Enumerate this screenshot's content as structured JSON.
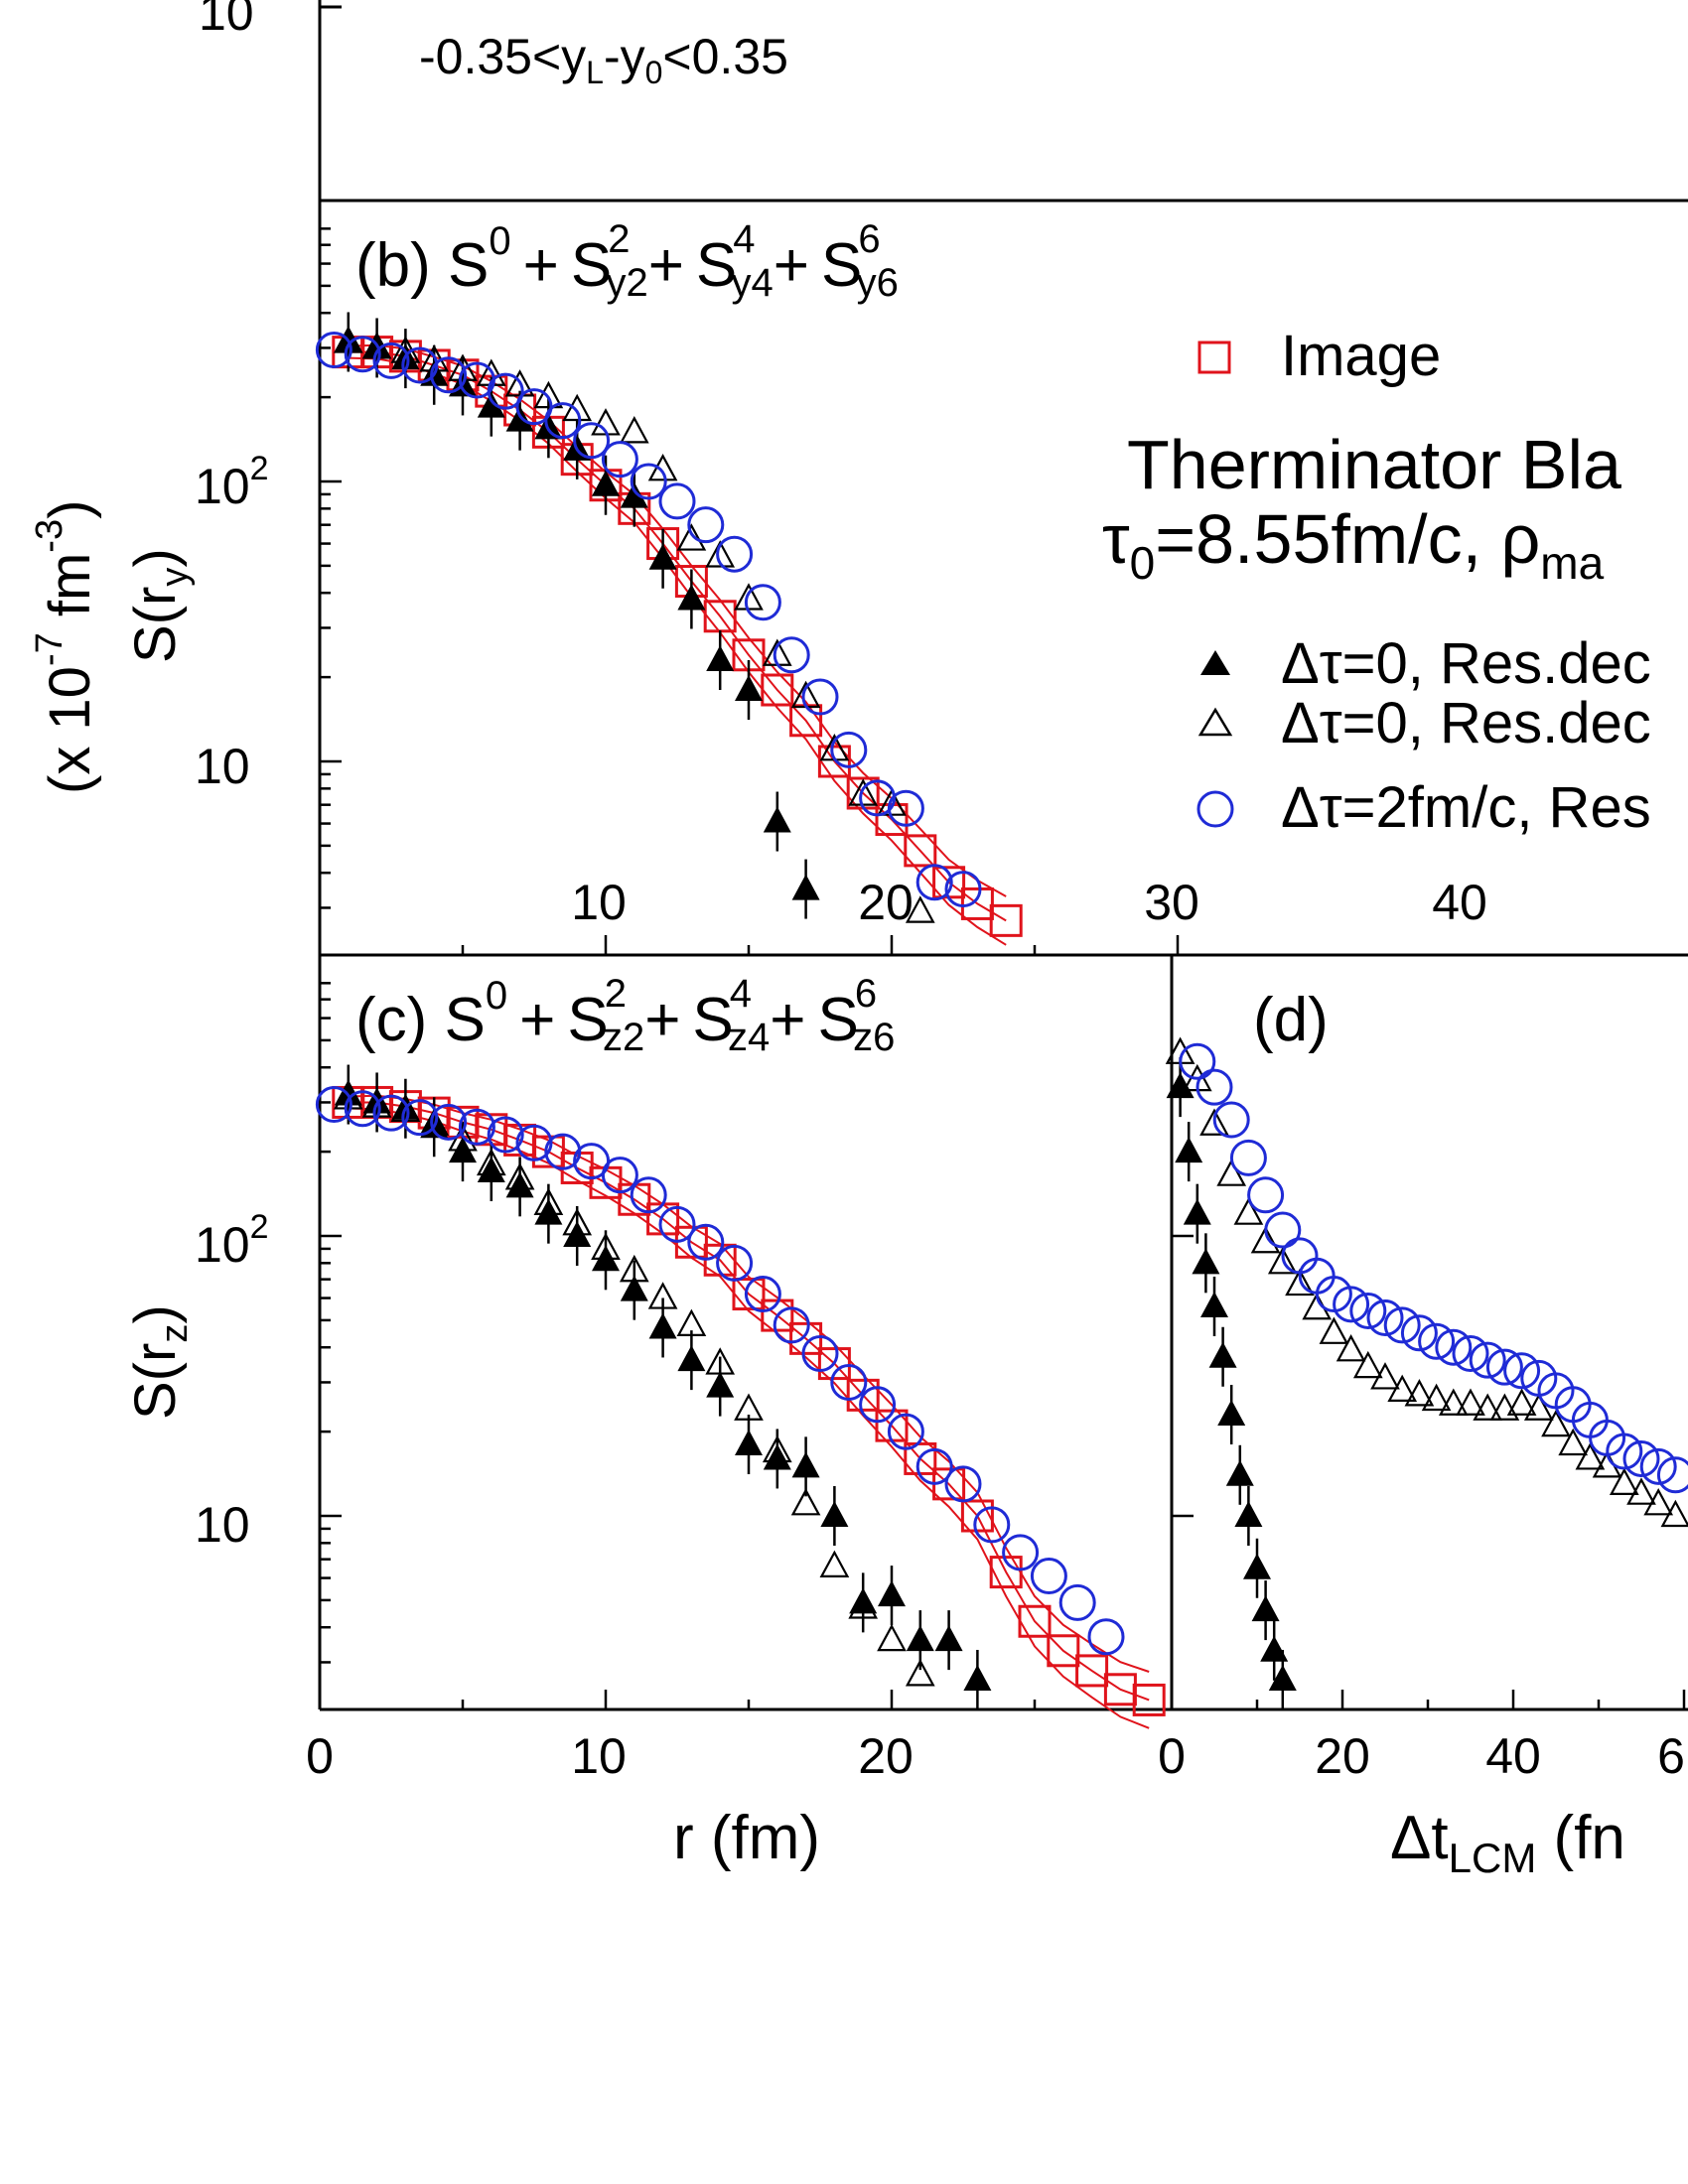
{
  "colors": {
    "image": "#e0131b",
    "res_fill": "#000000",
    "res_open": "#000000",
    "tau2": "#1f2bd6",
    "axis": "#000000"
  },
  "panel_a": {
    "cut_label": "-0.35<y_L-y_0<0.35",
    "tick_10": "10"
  },
  "panel_b": {
    "label_base": "(b) S",
    "sup0": "0",
    "plus": "+",
    "S": "S",
    "t1": {
      "sub": "y2",
      "sup": "2"
    },
    "t2": {
      "sub": "y4",
      "sup": "4"
    },
    "t3": {
      "sub": "y6",
      "sup": "6"
    }
  },
  "panel_c": {
    "label_base": "(c) S",
    "sup0": "0",
    "plus": "+",
    "S": "S",
    "t1": {
      "sub": "z2",
      "sup": "2"
    },
    "t2": {
      "sub": "z4",
      "sup": "4"
    },
    "t3": {
      "sub": "z6",
      "sup": "6"
    }
  },
  "panel_d": {
    "label": "(d)"
  },
  "legend": {
    "image": "Image",
    "model_line1": "Therminator Bla",
    "model_line2_a": "τ",
    "model_line2_sub": "0",
    "model_line2_b": "=8.55fm/c, ρ",
    "model_line2_sub2": "ma",
    "filled": "Δτ=0, Res.dec",
    "open": "Δτ=0, Res.dec",
    "circle": "Δτ=2fm/c, Res"
  },
  "axes": {
    "ylabel_units": "(x 10",
    "ylabel_units_exp": "-7",
    "ylabel_units_rest": " fm",
    "ylabel_units_exp2": "-3",
    "ylabel_units_close": ")",
    "ylabel_b": "S(r",
    "ylabel_b_sub": "y",
    "ylabel_c": "S(r",
    "ylabel_c_sub": "z",
    "close_paren": ")",
    "xlabel_c": "r (fm)",
    "xlabel_d": "Δt",
    "xlabel_d_sub": "LCM",
    "xlabel_d_rest": " (fn",
    "ytick_100": "10",
    "ytick_100_exp": "2",
    "ytick_10": "10",
    "xticks_b": [
      "10",
      "20",
      "30",
      "40"
    ],
    "xticks_c": [
      "0",
      "10",
      "20",
      "0"
    ],
    "xticks_d": [
      "20",
      "40",
      "6"
    ]
  },
  "chart_data": [
    {
      "type": "scatter",
      "panel": "b",
      "xlim": [
        0,
        48
      ],
      "ylim_log": [
        2.5,
        900
      ],
      "series": [
        {
          "name": "Image",
          "marker": "open-square",
          "band": true,
          "x": [
            1,
            2,
            3,
            4,
            5,
            6,
            7,
            8,
            9,
            10,
            11,
            12,
            13,
            14,
            15,
            16,
            17,
            18,
            19,
            20,
            21,
            22,
            23,
            24
          ],
          "y": [
            290,
            290,
            280,
            260,
            240,
            210,
            180,
            150,
            120,
            97,
            80,
            60,
            44,
            33,
            24,
            18,
            14,
            10,
            7.7,
            6.2,
            4.8,
            3.7,
            3.1,
            2.7
          ]
        },
        {
          "name": "Δτ=0, Res.dec",
          "marker": "filled-triangle",
          "x": [
            1,
            2,
            3,
            4,
            5,
            6,
            7,
            8,
            9,
            10,
            11,
            12,
            13,
            14,
            15,
            16,
            17
          ],
          "y": [
            315,
            300,
            275,
            240,
            220,
            185,
            165,
            155,
            130,
            97,
            88,
            53,
            38,
            23,
            18,
            6.1,
            3.5
          ]
        },
        {
          "name": "Δτ=0, Res.dec",
          "marker": "open-triangle",
          "x": [
            1,
            2,
            3,
            4,
            5,
            6,
            7,
            8,
            9,
            10,
            11,
            12,
            13,
            14,
            15,
            16,
            17,
            18,
            19,
            20,
            21
          ],
          "y": [
            315,
            300,
            290,
            270,
            250,
            240,
            220,
            200,
            180,
            160,
            150,
            110,
            62,
            54,
            38,
            24,
            17,
            11,
            7.6,
            7.0,
            2.9
          ]
        },
        {
          "name": "Δτ=2fm/c, Res",
          "marker": "open-circle",
          "x": [
            0.5,
            1.5,
            2.5,
            3.5,
            4.5,
            5.5,
            6.5,
            7.5,
            8.5,
            9.5,
            10.5,
            11.5,
            12.5,
            13.5,
            14.5,
            15.5,
            16.5,
            17.5,
            18.5,
            19.5,
            20.5,
            21.5,
            22.5
          ],
          "y": [
            295,
            285,
            270,
            260,
            240,
            230,
            210,
            185,
            165,
            140,
            120,
            100,
            85,
            70,
            55,
            37,
            24,
            17,
            11,
            7.4,
            6.8,
            3.7,
            3.5
          ]
        }
      ]
    },
    {
      "type": "scatter",
      "panel": "c",
      "xlim": [
        0,
        30
      ],
      "ylim_log": [
        2.5,
        900
      ],
      "series": [
        {
          "name": "Image",
          "marker": "open-square",
          "band": true,
          "x": [
            1,
            2,
            3,
            4,
            5,
            6,
            7,
            8,
            9,
            10,
            11,
            12,
            13,
            14,
            15,
            16,
            17,
            18,
            19,
            20,
            21,
            22,
            23,
            24,
            25,
            26,
            27,
            28,
            29
          ],
          "y": [
            300,
            300,
            290,
            275,
            255,
            240,
            220,
            200,
            175,
            155,
            135,
            115,
            95,
            82,
            62,
            52,
            43,
            35,
            27,
            21,
            16,
            13,
            10,
            6.3,
            4.2,
            3.3,
            2.8,
            2.4,
            2.2
          ]
        },
        {
          "name": "Δτ=0, Res.dec",
          "marker": "filled-triangle",
          "x": [
            1,
            2,
            3,
            4,
            5,
            6,
            7,
            8,
            9,
            10,
            11,
            12,
            13,
            14,
            15,
            16,
            17,
            18,
            19,
            20,
            21,
            22,
            23
          ],
          "y": [
            320,
            300,
            285,
            245,
            200,
            170,
            150,
            120,
            100,
            82,
            64,
            47,
            36,
            29,
            18,
            16,
            15,
            10,
            4.9,
            5.2,
            3.6,
            3.6,
            2.6
          ]
        },
        {
          "name": "Δτ=0, Res.dec",
          "marker": "open-triangle",
          "x": [
            1,
            2,
            3,
            4,
            5,
            6,
            7,
            8,
            9,
            10,
            11,
            12,
            13,
            14,
            15,
            16,
            17,
            18,
            19,
            20,
            21
          ],
          "y": [
            310,
            290,
            280,
            250,
            220,
            180,
            160,
            130,
            110,
            90,
            75,
            60,
            48,
            35,
            24,
            17,
            11,
            6.6,
            4.7,
            3.6,
            2.7
          ]
        },
        {
          "name": "Δτ=2fm/c, Res",
          "marker": "open-circle",
          "x": [
            0.5,
            1.5,
            2.5,
            3.5,
            4.5,
            5.5,
            6.5,
            7.5,
            8.5,
            9.5,
            10.5,
            11.5,
            12.5,
            13.5,
            14.5,
            15.5,
            16.5,
            17.5,
            18.5,
            19.5,
            20.5,
            21.5,
            22.5,
            23.5,
            24.5,
            25.5,
            26.5,
            27.5
          ],
          "y": [
            295,
            285,
            275,
            265,
            255,
            245,
            230,
            215,
            200,
            185,
            165,
            140,
            110,
            95,
            80,
            62,
            48,
            38,
            30,
            25,
            20,
            15,
            13,
            9.3,
            7.4,
            6.1,
            4.9,
            3.7
          ]
        }
      ]
    },
    {
      "type": "scatter",
      "panel": "d",
      "xlim": [
        0,
        60
      ],
      "ylim_log": [
        2.5,
        900
      ],
      "series": [
        {
          "name": "Δτ=0, Res.dec",
          "marker": "filled-triangle",
          "x": [
            1,
            2,
            3,
            4,
            5,
            6,
            7,
            8,
            9,
            10,
            11,
            12,
            13
          ],
          "y": [
            340,
            200,
            120,
            80,
            56,
            37,
            23,
            14,
            10,
            6.5,
            4.6,
            3.3,
            2.6
          ]
        },
        {
          "name": "Δτ=0, Res.dec",
          "marker": "open-triangle",
          "x": [
            1,
            3,
            5,
            7,
            9,
            11,
            13,
            15,
            17,
            19,
            21,
            23,
            25,
            27,
            29,
            31,
            33,
            35,
            37,
            39,
            41,
            43,
            45,
            47,
            49,
            51,
            53,
            55,
            57,
            59
          ],
          "y": [
            450,
            360,
            250,
            165,
            120,
            95,
            80,
            67,
            55,
            45,
            39,
            34,
            31,
            28,
            27,
            26,
            25,
            25,
            24,
            24,
            25,
            24,
            21,
            18,
            16,
            15,
            13,
            12,
            11,
            10
          ]
        },
        {
          "name": "Δτ=2fm/c, Res",
          "marker": "open-circle",
          "x": [
            3,
            5,
            7,
            9,
            11,
            13,
            15,
            17,
            19,
            21,
            23,
            25,
            27,
            29,
            31,
            33,
            35,
            37,
            39,
            41,
            43,
            45,
            47,
            49,
            51,
            53,
            55,
            57,
            59
          ],
          "y": [
            420,
            340,
            260,
            190,
            140,
            105,
            85,
            72,
            62,
            57,
            54,
            51,
            48,
            45,
            42,
            40,
            38,
            36,
            34,
            33,
            31,
            28,
            25,
            22,
            19,
            17,
            16,
            15,
            14
          ]
        }
      ]
    }
  ]
}
